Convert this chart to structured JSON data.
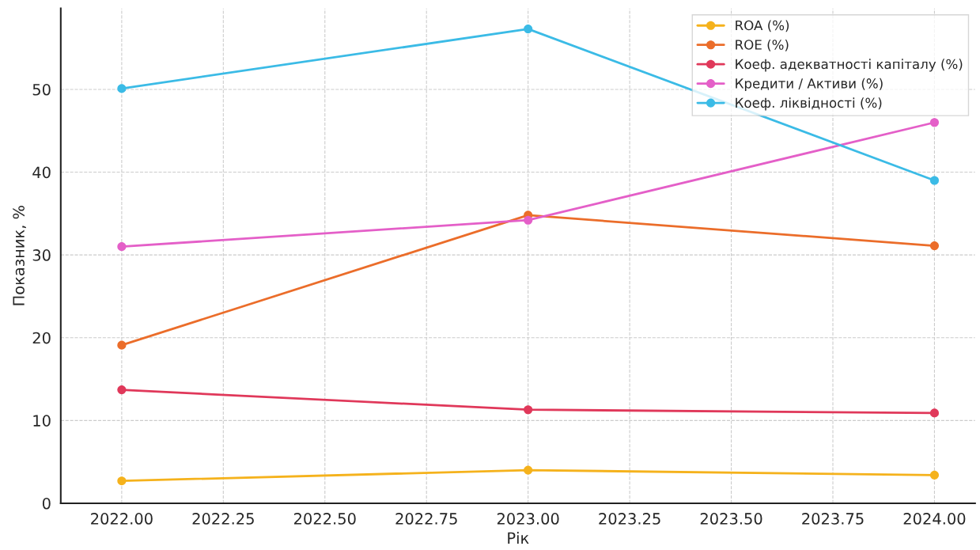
{
  "chart_data": {
    "type": "line",
    "xlabel": "Рік",
    "ylabel": "Показник, %",
    "x": [
      2022,
      2023,
      2024
    ],
    "series": [
      {
        "name": "ROA (%)",
        "color": "#f5b21c",
        "values": [
          2.7,
          4.0,
          3.4
        ]
      },
      {
        "name": "ROE (%)",
        "color": "#eb6d2a",
        "values": [
          19.1,
          34.8,
          31.1
        ]
      },
      {
        "name": "Коеф. адекватності капіталу (%)",
        "color": "#e0385a",
        "values": [
          13.7,
          11.3,
          10.9
        ]
      },
      {
        "name": "Кредити / Активи (%)",
        "color": "#e45fc8",
        "values": [
          31.0,
          34.2,
          46.0
        ]
      },
      {
        "name": "Коеф. ліквідності (%)",
        "color": "#3bbbe6",
        "values": [
          50.1,
          57.3,
          39.0
        ]
      }
    ],
    "xlim": [
      2021.85,
      2024.1
    ],
    "ylim": [
      0,
      59.8
    ],
    "xticks": [
      {
        "value": 2022,
        "label": "2022.00"
      },
      {
        "value": 2022.25,
        "label": "2022.25"
      },
      {
        "value": 2022.5,
        "label": "2022.50"
      },
      {
        "value": 2022.75,
        "label": "2022.75"
      },
      {
        "value": 2023,
        "label": "2023.00"
      },
      {
        "value": 2023.25,
        "label": "2023.25"
      },
      {
        "value": 2023.5,
        "label": "2023.50"
      },
      {
        "value": 2023.75,
        "label": "2023.75"
      },
      {
        "value": 2024,
        "label": "2024.00"
      }
    ],
    "yticks": [
      0,
      10,
      20,
      30,
      40,
      50
    ],
    "grid": true,
    "legend": "top right",
    "marker": "circle",
    "line_style": "solid"
  }
}
